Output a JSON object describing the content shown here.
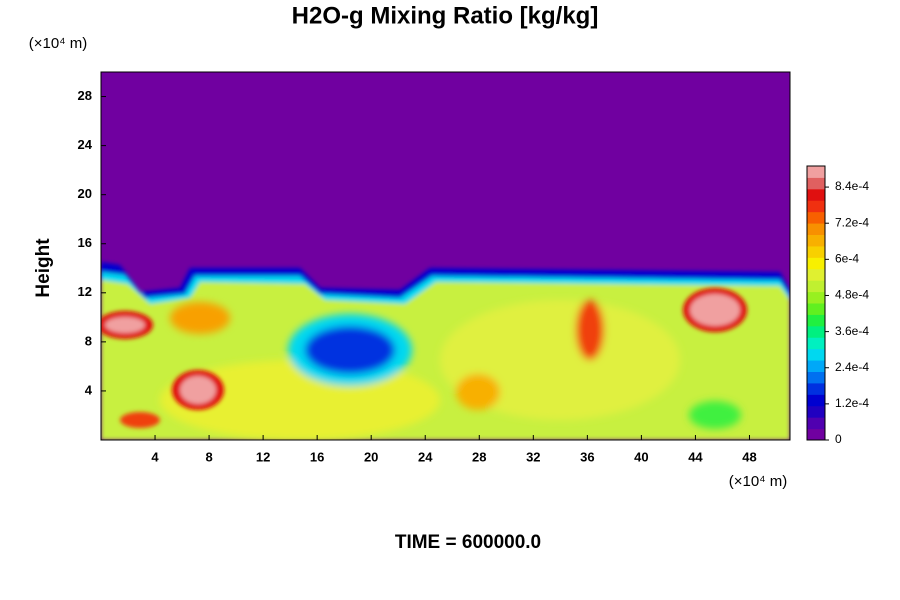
{
  "chart_data": {
    "type": "contour",
    "title": "H2O-g Mixing Ratio [kg/kg]",
    "y_label": "Height",
    "y_unit": "(×10⁴ m)",
    "x_unit": "(×10⁴ m)",
    "footer": "TIME = 600000.0",
    "xlim": [
      0,
      51
    ],
    "xticks": [
      4,
      8,
      12,
      16,
      20,
      24,
      28,
      32,
      36,
      40,
      44,
      48
    ],
    "ylim": [
      0,
      30
    ],
    "yticks": [
      4,
      8,
      12,
      16,
      20,
      24,
      28
    ],
    "colorbar": {
      "lim": [
        0,
        0.00091
      ],
      "ticks": [
        0,
        {
          "value": 0.00012,
          "label": "1.2e-4"
        },
        {
          "value": 0.00024,
          "label": "2.4e-4"
        },
        {
          "value": 0.00036,
          "label": "3.6e-4"
        },
        {
          "value": 0.00048,
          "label": "4.8e-4"
        },
        {
          "value": 0.0006,
          "label": "6e-4"
        },
        {
          "value": 0.00072,
          "label": "7.2e-4"
        },
        {
          "value": 0.00084,
          "label": "8.4e-4"
        }
      ],
      "colors": [
        "#7000a0",
        "#5000b0",
        "#2000c0",
        "#0000d0",
        "#0030e0",
        "#0070f0",
        "#00a8f8",
        "#00d8f0",
        "#00f0c0",
        "#00f080",
        "#20f040",
        "#60f020",
        "#98f020",
        "#c0f030",
        "#e0f030",
        "#f8f000",
        "#f8d000",
        "#f8b000",
        "#f89000",
        "#f86000",
        "#f03010",
        "#e01010",
        "#e06060",
        "#f0a0a0"
      ]
    }
  }
}
